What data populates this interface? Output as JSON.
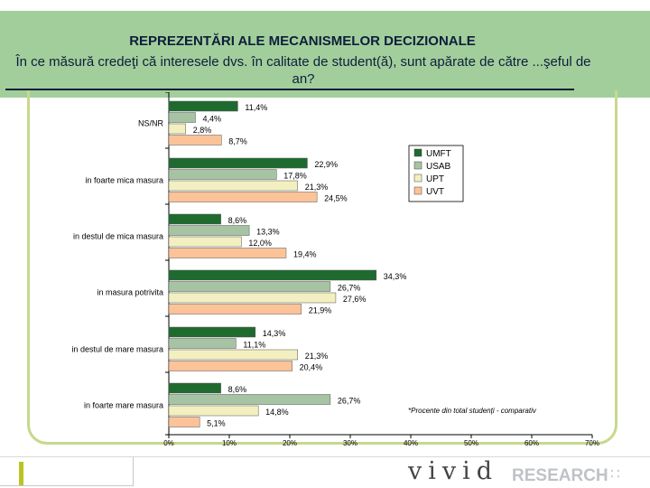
{
  "slide": {
    "title": "REPREZENTĂRI ALE MECANISMELOR DECIZIONALE",
    "subtitle": "În ce măsură credeţi că interesele dvs. în calitate de student(ă), sunt apărate de către ...şeful de an?"
  },
  "chart_data": {
    "type": "bar",
    "orientation": "horizontal",
    "categories": [
      "NS/NR",
      "in foarte mica masura",
      "in destul de mica masura",
      "in masura potrivita",
      "in destul de mare masura",
      "in foarte mare masura"
    ],
    "series": [
      {
        "name": "UMFT",
        "color": "#1f6b2f",
        "values": [
          11.4,
          22.9,
          8.6,
          34.3,
          14.3,
          8.6
        ]
      },
      {
        "name": "USAB",
        "color": "#a6c4a3",
        "values": [
          4.4,
          17.8,
          13.3,
          26.7,
          11.1,
          26.7
        ]
      },
      {
        "name": "UPT",
        "color": "#f2f0c0",
        "values": [
          2.8,
          21.3,
          12.0,
          27.6,
          21.3,
          14.8
        ]
      },
      {
        "name": "UVT",
        "color": "#fcc398",
        "values": [
          8.7,
          24.5,
          19.4,
          21.9,
          20.4,
          5.1
        ]
      }
    ],
    "xlim": [
      0,
      70
    ],
    "xticks": [
      "0%",
      "10%",
      "20%",
      "30%",
      "40%",
      "50%",
      "60%",
      "70%"
    ],
    "legend_position": "right",
    "annotation": "*Procente din total studenţi - comparativ"
  },
  "logo": {
    "word": "vivid",
    "research": "RESEARCH",
    "dots": "∷"
  }
}
